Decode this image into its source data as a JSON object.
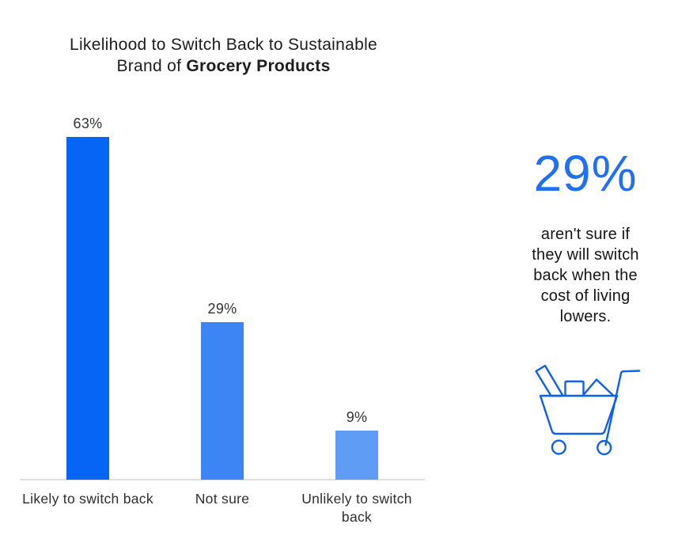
{
  "chart": {
    "title_line1": "Likelihood to Switch Back to Sustainable",
    "title_line2_regular": "Brand of ",
    "title_line2_bold": "Grocery Products"
  },
  "chart_data": {
    "type": "bar",
    "title": "Likelihood to Switch Back to Sustainable Brand of Grocery Products",
    "categories": [
      "Likely to switch back",
      "Not sure",
      "Unlikely to switch back"
    ],
    "values": [
      63,
      29,
      9
    ],
    "value_labels": [
      "63%",
      "29%",
      "9%"
    ],
    "series": [
      {
        "name": "Likelihood",
        "values": [
          63,
          29,
          9
        ]
      }
    ],
    "bar_colors": [
      "#0765f5",
      "#3d84f5",
      "#5f9cf6"
    ],
    "axis_color": "#e0e0e0",
    "ylim": [
      0,
      70
    ],
    "grid": false,
    "legend": false,
    "orientation": "vertical",
    "xlabel": "",
    "ylabel": ""
  },
  "callout": {
    "stat": "29%",
    "stat_color": "#2170f0",
    "description": "aren't sure if\nthey will switch\nback when the\ncost of living\nlowers.",
    "icon": "shopping-cart-icon",
    "icon_color": "#0e5ff0"
  }
}
